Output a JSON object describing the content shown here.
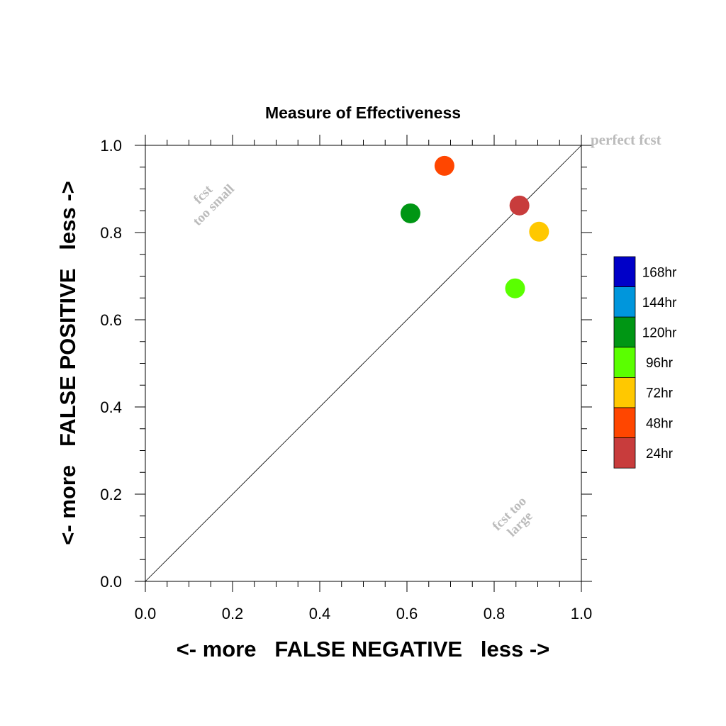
{
  "chart_data": {
    "type": "scatter",
    "title": "Measure of Effectiveness",
    "xlabel": "<- more   FALSE NEGATIVE   less ->",
    "ylabel": "<- more   FALSE POSITIVE   less ->",
    "xlim": [
      0.0,
      1.0
    ],
    "ylim": [
      0.0,
      1.0
    ],
    "xticks": [
      "0.0",
      "0.2",
      "0.4",
      "0.6",
      "0.8",
      "1.0"
    ],
    "yticks": [
      "0.0",
      "0.2",
      "0.4",
      "0.6",
      "0.8",
      "1.0"
    ],
    "grid": false,
    "diagonal_line": true,
    "annotations": {
      "perfect": "perfect fcst",
      "too_small_1": "fcst",
      "too_small_2": "too small",
      "too_large_1": "fcst too",
      "too_large_2": "large"
    },
    "legend": {
      "placement": "right",
      "entries": [
        {
          "label": "168hr",
          "color": "#0000c8"
        },
        {
          "label": "144hr",
          "color": "#0096dc"
        },
        {
          "label": "120hr",
          "color": "#009614"
        },
        {
          "label": "96hr",
          "color": "#5aff00"
        },
        {
          "label": "72hr",
          "color": "#ffc800"
        },
        {
          "label": "48hr",
          "color": "#ff4600"
        },
        {
          "label": "24hr",
          "color": "#c83c3c"
        }
      ]
    },
    "points": [
      {
        "label": "24hr",
        "x": 0.858,
        "y": 0.862,
        "color": "#c83c3c"
      },
      {
        "label": "48hr",
        "x": 0.686,
        "y": 0.953,
        "color": "#ff4600"
      },
      {
        "label": "72hr",
        "x": 0.903,
        "y": 0.802,
        "color": "#ffc800"
      },
      {
        "label": "96hr",
        "x": 0.848,
        "y": 0.672,
        "color": "#5aff00"
      },
      {
        "label": "120hr",
        "x": 0.608,
        "y": 0.844,
        "color": "#009614"
      }
    ]
  }
}
